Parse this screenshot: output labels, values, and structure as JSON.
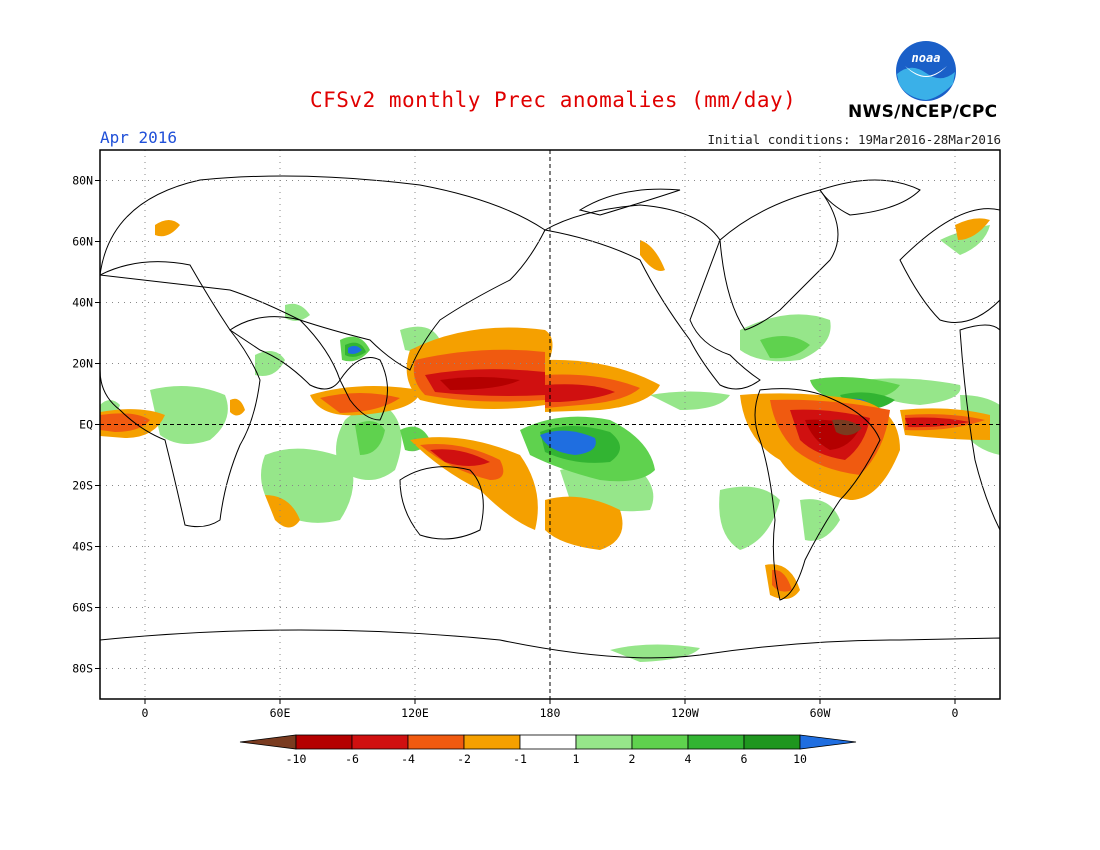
{
  "header": {
    "title": "CFSv2 monthly Prec anomalies (mm/day)",
    "month": "Apr 2016",
    "initial_conditions": "Initial conditions: 19Mar2016-28Mar2016",
    "organization": "NWS/NCEP/CPC",
    "logo_text": "noaa"
  },
  "map": {
    "projection": "equirectangular",
    "lon_range": [
      -20,
      380
    ],
    "lat_range": [
      -90,
      90
    ],
    "lat_labels": [
      "80N",
      "60N",
      "40N",
      "20N",
      "EQ",
      "20S",
      "40S",
      "60S",
      "80S"
    ],
    "lon_labels": [
      "0",
      "60E",
      "120E",
      "180",
      "120W",
      "60W",
      "0"
    ]
  },
  "legend": {
    "boundaries": [
      "-10",
      "-6",
      "-4",
      "-2",
      "-1",
      "1",
      "2",
      "4",
      "6",
      "10"
    ],
    "colors": [
      "#7a3b20",
      "#b40000",
      "#d01010",
      "#f05a10",
      "#f5a000",
      "#ffffff",
      "#96e68a",
      "#5fd24e",
      "#32b432",
      "#1f961f",
      "#1f6ee0"
    ]
  }
}
